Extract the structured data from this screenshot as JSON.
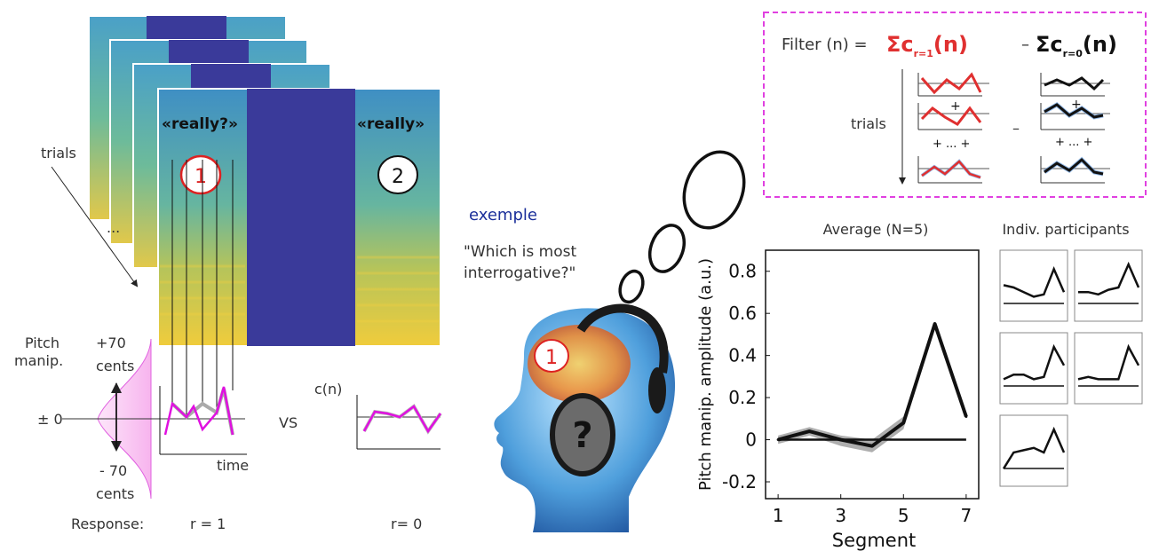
{
  "left": {
    "word1": "«really?»",
    "word2": "«really»",
    "stim1": "1",
    "stim2": "2",
    "trials_label": "trials",
    "ellipsis": "...",
    "pitch_label_1": "Pitch",
    "pitch_label_2": "manip.",
    "plus70": "+70",
    "plus70_unit": "cents",
    "zero": "± 0",
    "minus70": "- 70",
    "minus70_unit": "cents",
    "time_label": "time",
    "vs": "VS",
    "cn_label": "c(n)",
    "response_label": "Response:",
    "r1": "r = 1",
    "r0": "r= 0"
  },
  "middle": {
    "exemple": "exemple",
    "question_line1": "\"Which is most",
    "question_line2": "interrogative?\"",
    "thought_1": "1",
    "headphone_symbol": "?"
  },
  "filter": {
    "prefix": "Filter (n) =",
    "sum_r1": "Σc",
    "sum_r1_sub": "r=1",
    "sum_r1_suffix": "(n)",
    "minus": "–",
    "sum_r0": "Σc",
    "sum_r0_sub": "r=0",
    "sum_r0_suffix": "(n)",
    "trials_label": "trials",
    "plus": "+",
    "dots": "+ ... +",
    "minus_between": "–",
    "border_color": "#e040e0",
    "red": "#e03030"
  },
  "chart_data": {
    "type": "line",
    "title": "Average (N=5)",
    "xlabel": "Segment",
    "ylabel": "Pitch manip. amplitude (a.u.)",
    "x": [
      1,
      2,
      3,
      4,
      5,
      6,
      7
    ],
    "series": [
      {
        "values": [
          0.0,
          0.04,
          0.0,
          -0.03,
          0.08,
          0.55,
          0.11
        ]
      }
    ],
    "band_lower": [
      -0.02,
      0.02,
      -0.03,
      -0.06,
      0.05,
      0.55,
      0.11
    ],
    "band_upper": [
      0.02,
      0.06,
      0.02,
      0.0,
      0.11,
      0.55,
      0.11
    ],
    "zero_line": 0,
    "xticks": [
      1,
      3,
      5,
      7
    ],
    "yticks": [
      -0.2,
      0,
      0.2,
      0.4,
      0.6,
      0.8
    ],
    "ytick_labels": [
      "-0.2",
      "0",
      "0.2",
      "0.4",
      "0.6",
      "0.8"
    ],
    "xlim": [
      0.6,
      7.4
    ],
    "ylim": [
      -0.28,
      0.9
    ]
  },
  "indiv": {
    "title": "Indiv. participants",
    "participants": [
      [
        0.55,
        0.5,
        0.4,
        0.3,
        0.35,
        0.9,
        0.4
      ],
      [
        0.4,
        0.4,
        0.35,
        0.45,
        0.5,
        1.0,
        0.5
      ],
      [
        0.3,
        0.4,
        0.4,
        0.3,
        0.35,
        1.0,
        0.6
      ],
      [
        0.3,
        0.35,
        0.3,
        0.3,
        0.3,
        1.0,
        0.6
      ],
      [
        0.15,
        0.5,
        0.55,
        0.6,
        0.5,
        1.0,
        0.5
      ]
    ]
  }
}
